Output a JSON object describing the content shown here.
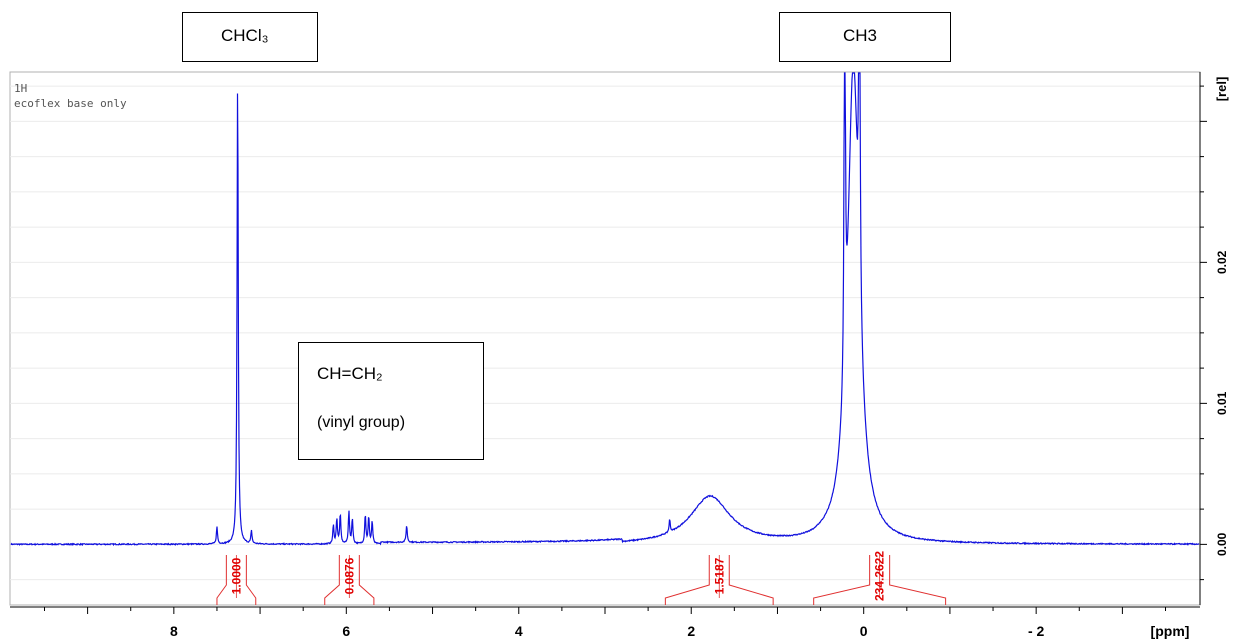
{
  "chart_data": {
    "type": "line",
    "title": "",
    "info_lines": [
      "1H",
      "ecoflex base only"
    ],
    "xlabel": "[ppm]",
    "ylabel": "[rel]",
    "x_ticks": [
      8,
      6,
      4,
      2,
      0,
      -2
    ],
    "x_tick_labels": [
      "8",
      "6",
      "4",
      "2",
      "0",
      "- 2"
    ],
    "xlim": [
      9.9,
      -3.9
    ],
    "y_ticks": [
      0.0,
      0.01,
      0.02
    ],
    "y_tick_labels": [
      "0.00",
      "0.01",
      "0.02"
    ],
    "ylim": [
      -0.0043,
      0.0335
    ],
    "grid": true,
    "series": [
      {
        "color": "#1010dd",
        "peaks": [
          {
            "ppm": 7.26,
            "height": 0.0335
          },
          {
            "ppm": 7.5,
            "height": 0.0012
          },
          {
            "ppm": 7.1,
            "height": 0.0009
          },
          {
            "ppm": 6.15,
            "height": 0.0013
          },
          {
            "ppm": 6.11,
            "height": 0.0018
          },
          {
            "ppm": 6.07,
            "height": 0.0021
          },
          {
            "ppm": 5.97,
            "height": 0.0023
          },
          {
            "ppm": 5.93,
            "height": 0.0018
          },
          {
            "ppm": 5.78,
            "height": 0.0021
          },
          {
            "ppm": 5.74,
            "height": 0.0019
          },
          {
            "ppm": 5.7,
            "height": 0.0016
          },
          {
            "ppm": 5.3,
            "height": 0.0012
          },
          {
            "ppm": 2.25,
            "height": 0.0009
          },
          {
            "ppm": 0.22,
            "height": 0.0335
          },
          {
            "ppm": 0.05,
            "height": 0.0335
          }
        ],
        "broad_peaks": [
          {
            "ppm": 1.78,
            "height": 0.0034,
            "width": 0.28
          },
          {
            "ppm": 0.12,
            "height": 0.0335,
            "width": 0.08
          }
        ]
      }
    ],
    "integrals": [
      {
        "label": "1.0000",
        "from": 7.5,
        "to": 7.05
      },
      {
        "label": "0.0876",
        "from": 6.25,
        "to": 5.68
      },
      {
        "label": "1.5187",
        "from": 2.3,
        "to": 1.05
      },
      {
        "label": "234.2622",
        "from": 0.58,
        "to": -0.95
      }
    ],
    "annotations": [
      {
        "name": "chcl3",
        "text": "CHCl₃"
      },
      {
        "name": "ch3",
        "text": "CH3"
      },
      {
        "name": "vinyl",
        "lines": [
          "CH=CH₂",
          "(vinyl group)"
        ]
      }
    ]
  }
}
